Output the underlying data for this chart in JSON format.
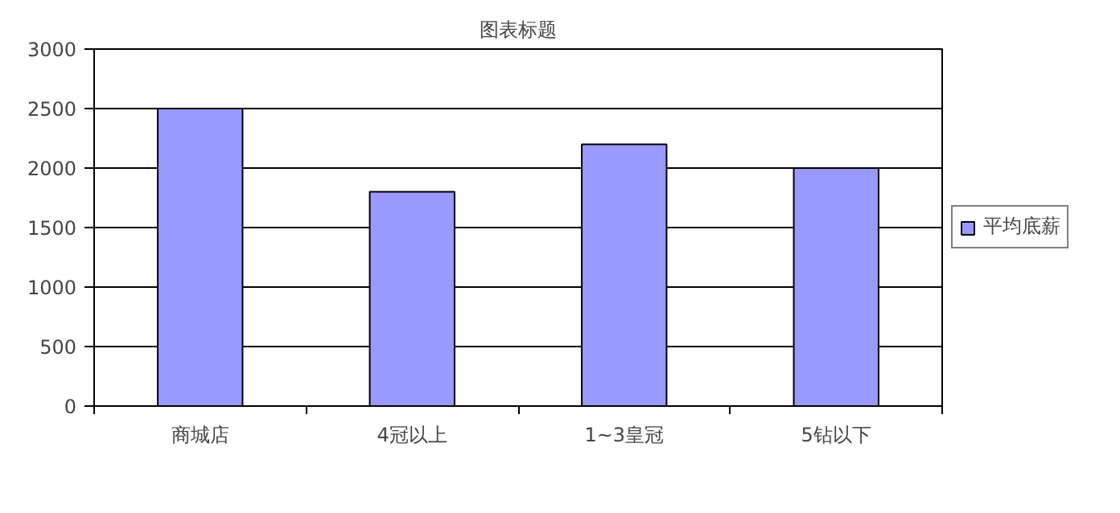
{
  "chart_data": {
    "type": "bar",
    "title": "图表标题",
    "categories": [
      "商城店",
      "4冠以上",
      "1~3皇冠",
      "5钻以下"
    ],
    "series": [
      {
        "name": "平均底薪",
        "color": "#9999ff",
        "values": [
          2500,
          1800,
          2200,
          2000
        ]
      }
    ],
    "ylim": [
      0,
      3000
    ],
    "yticks": [
      0,
      500,
      1000,
      1500,
      2000,
      2500,
      3000
    ],
    "grid": "y",
    "legend": "right"
  }
}
